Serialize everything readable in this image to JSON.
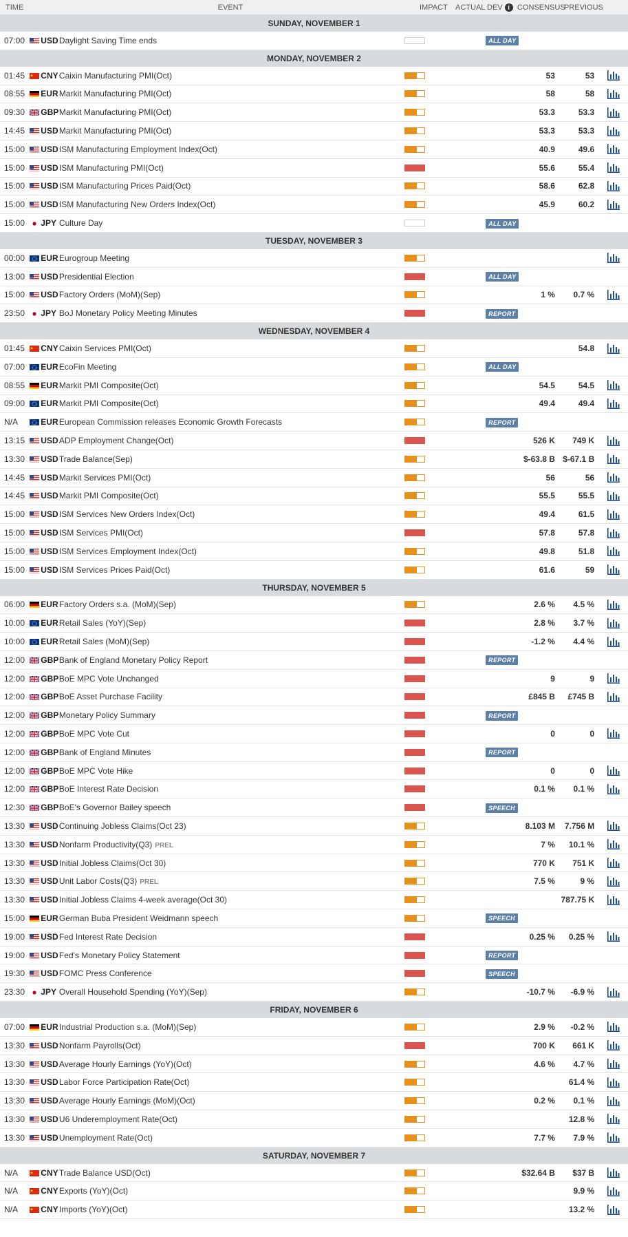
{
  "header": {
    "time": "TIME",
    "event": "EVENT",
    "impact": "IMPACT",
    "actual": "ACTUAL",
    "dev": "DEV",
    "consensus": "CONSENSUS",
    "previous": "PREVIOUS"
  },
  "colors": {
    "high": "#d9534f",
    "medium": "#e8901c",
    "badge": "#5c7fa6"
  },
  "days": [
    {
      "title": "SUNDAY, NOVEMBER 1",
      "events": [
        {
          "time": "07:00",
          "flag": "us",
          "cur": "USD",
          "name": "Daylight Saving Time ends",
          "impact": "none",
          "badge": "ALL DAY",
          "cons": "",
          "prev": "",
          "chart": false
        }
      ]
    },
    {
      "title": "MONDAY, NOVEMBER 2",
      "events": [
        {
          "time": "01:45",
          "flag": "cn",
          "cur": "CNY",
          "name": "Caixin Manufacturing PMI(Oct)",
          "impact": "medium",
          "cons": "53",
          "prev": "53",
          "chart": true
        },
        {
          "time": "08:55",
          "flag": "de",
          "cur": "EUR",
          "name": "Markit Manufacturing PMI(Oct)",
          "impact": "medium",
          "cons": "58",
          "prev": "58",
          "chart": true
        },
        {
          "time": "09:30",
          "flag": "gb",
          "cur": "GBP",
          "name": "Markit Manufacturing PMI(Oct)",
          "impact": "medium",
          "cons": "53.3",
          "prev": "53.3",
          "chart": true
        },
        {
          "time": "14:45",
          "flag": "us",
          "cur": "USD",
          "name": "Markit Manufacturing PMI(Oct)",
          "impact": "medium",
          "cons": "53.3",
          "prev": "53.3",
          "chart": true
        },
        {
          "time": "15:00",
          "flag": "us",
          "cur": "USD",
          "name": "ISM Manufacturing Employment Index(Oct)",
          "impact": "medium",
          "cons": "40.9",
          "prev": "49.6",
          "chart": true
        },
        {
          "time": "15:00",
          "flag": "us",
          "cur": "USD",
          "name": "ISM Manufacturing PMI(Oct)",
          "impact": "high",
          "cons": "55.6",
          "prev": "55.4",
          "chart": true
        },
        {
          "time": "15:00",
          "flag": "us",
          "cur": "USD",
          "name": "ISM Manufacturing Prices Paid(Oct)",
          "impact": "medium",
          "cons": "58.6",
          "prev": "62.8",
          "chart": true
        },
        {
          "time": "15:00",
          "flag": "us",
          "cur": "USD",
          "name": "ISM Manufacturing New Orders Index(Oct)",
          "impact": "medium",
          "cons": "45.9",
          "prev": "60.2",
          "chart": true
        },
        {
          "time": "15:00",
          "flag": "jp",
          "cur": "JPY",
          "name": "Culture Day",
          "impact": "none",
          "badge": "ALL DAY",
          "cons": "",
          "prev": "",
          "chart": false
        }
      ]
    },
    {
      "title": "TUESDAY, NOVEMBER 3",
      "events": [
        {
          "time": "00:00",
          "flag": "eu",
          "cur": "EUR",
          "name": "Eurogroup Meeting",
          "impact": "medium",
          "cons": "",
          "prev": "",
          "chart": true
        },
        {
          "time": "13:00",
          "flag": "us",
          "cur": "USD",
          "name": "Presidential Election",
          "impact": "high",
          "badge": "ALL DAY",
          "cons": "",
          "prev": "",
          "chart": false
        },
        {
          "time": "15:00",
          "flag": "us",
          "cur": "USD",
          "name": "Factory Orders (MoM)(Sep)",
          "impact": "medium",
          "cons": "1 %",
          "prev": "0.7 %",
          "chart": true
        },
        {
          "time": "23:50",
          "flag": "jp",
          "cur": "JPY",
          "name": "BoJ Monetary Policy Meeting Minutes",
          "impact": "high",
          "badge": "REPORT",
          "cons": "",
          "prev": "",
          "chart": false
        }
      ]
    },
    {
      "title": "WEDNESDAY, NOVEMBER 4",
      "events": [
        {
          "time": "01:45",
          "flag": "cn",
          "cur": "CNY",
          "name": "Caixin Services PMI(Oct)",
          "impact": "medium",
          "cons": "",
          "prev": "54.8",
          "chart": true
        },
        {
          "time": "07:00",
          "flag": "eu",
          "cur": "EUR",
          "name": "EcoFin Meeting",
          "impact": "medium",
          "badge": "ALL DAY",
          "cons": "",
          "prev": "",
          "chart": false
        },
        {
          "time": "08:55",
          "flag": "de",
          "cur": "EUR",
          "name": "Markit PMI Composite(Oct)",
          "impact": "medium",
          "cons": "54.5",
          "prev": "54.5",
          "chart": true
        },
        {
          "time": "09:00",
          "flag": "eu",
          "cur": "EUR",
          "name": "Markit PMI Composite(Oct)",
          "impact": "medium",
          "cons": "49.4",
          "prev": "49.4",
          "chart": true
        },
        {
          "time": "N/A",
          "flag": "eu",
          "cur": "EUR",
          "name": "European Commission releases Economic Growth Forecasts",
          "impact": "medium",
          "badge": "REPORT",
          "cons": "",
          "prev": "",
          "chart": false
        },
        {
          "time": "13:15",
          "flag": "us",
          "cur": "USD",
          "name": "ADP Employment Change(Oct)",
          "impact": "high",
          "cons": "526 K",
          "prev": "749 K",
          "chart": true
        },
        {
          "time": "13:30",
          "flag": "us",
          "cur": "USD",
          "name": "Trade Balance(Sep)",
          "impact": "medium",
          "cons": "$-63.8 B",
          "prev": "$-67.1 B",
          "chart": true
        },
        {
          "time": "14:45",
          "flag": "us",
          "cur": "USD",
          "name": "Markit Services PMI(Oct)",
          "impact": "medium",
          "cons": "56",
          "prev": "56",
          "chart": true
        },
        {
          "time": "14:45",
          "flag": "us",
          "cur": "USD",
          "name": "Markit PMI Composite(Oct)",
          "impact": "medium",
          "cons": "55.5",
          "prev": "55.5",
          "chart": true
        },
        {
          "time": "15:00",
          "flag": "us",
          "cur": "USD",
          "name": "ISM Services New Orders Index(Oct)",
          "impact": "medium",
          "cons": "49.4",
          "prev": "61.5",
          "chart": true
        },
        {
          "time": "15:00",
          "flag": "us",
          "cur": "USD",
          "name": "ISM Services PMI(Oct)",
          "impact": "high",
          "cons": "57.8",
          "prev": "57.8",
          "chart": true
        },
        {
          "time": "15:00",
          "flag": "us",
          "cur": "USD",
          "name": "ISM Services Employment Index(Oct)",
          "impact": "medium",
          "cons": "49.8",
          "prev": "51.8",
          "chart": true
        },
        {
          "time": "15:00",
          "flag": "us",
          "cur": "USD",
          "name": "ISM Services Prices Paid(Oct)",
          "impact": "medium",
          "cons": "61.6",
          "prev": "59",
          "chart": true
        }
      ]
    },
    {
      "title": "THURSDAY, NOVEMBER 5",
      "events": [
        {
          "time": "06:00",
          "flag": "de",
          "cur": "EUR",
          "name": "Factory Orders s.a. (MoM)(Sep)",
          "impact": "medium",
          "cons": "2.6 %",
          "prev": "4.5 %",
          "chart": true
        },
        {
          "time": "10:00",
          "flag": "eu",
          "cur": "EUR",
          "name": "Retail Sales (YoY)(Sep)",
          "impact": "high",
          "cons": "2.8 %",
          "prev": "3.7 %",
          "chart": true
        },
        {
          "time": "10:00",
          "flag": "eu",
          "cur": "EUR",
          "name": "Retail Sales (MoM)(Sep)",
          "impact": "high",
          "cons": "-1.2 %",
          "prev": "4.4 %",
          "chart": true
        },
        {
          "time": "12:00",
          "flag": "gb",
          "cur": "GBP",
          "name": "Bank of England Monetary Policy Report",
          "impact": "high",
          "badge": "REPORT",
          "cons": "",
          "prev": "",
          "chart": false
        },
        {
          "time": "12:00",
          "flag": "gb",
          "cur": "GBP",
          "name": "BoE MPC Vote Unchanged",
          "impact": "high",
          "cons": "9",
          "prev": "9",
          "chart": true
        },
        {
          "time": "12:00",
          "flag": "gb",
          "cur": "GBP",
          "name": "BoE Asset Purchase Facility",
          "impact": "high",
          "cons": "£845 B",
          "prev": "£745 B",
          "chart": true
        },
        {
          "time": "12:00",
          "flag": "gb",
          "cur": "GBP",
          "name": "Monetary Policy Summary",
          "impact": "high",
          "badge": "REPORT",
          "cons": "",
          "prev": "",
          "chart": false
        },
        {
          "time": "12:00",
          "flag": "gb",
          "cur": "GBP",
          "name": "BoE MPC Vote Cut",
          "impact": "high",
          "cons": "0",
          "prev": "0",
          "chart": true
        },
        {
          "time": "12:00",
          "flag": "gb",
          "cur": "GBP",
          "name": "Bank of England Minutes",
          "impact": "high",
          "badge": "REPORT",
          "cons": "",
          "prev": "",
          "chart": false
        },
        {
          "time": "12:00",
          "flag": "gb",
          "cur": "GBP",
          "name": "BoE MPC Vote Hike",
          "impact": "high",
          "cons": "0",
          "prev": "0",
          "chart": true
        },
        {
          "time": "12:00",
          "flag": "gb",
          "cur": "GBP",
          "name": "BoE Interest Rate Decision",
          "impact": "high",
          "cons": "0.1 %",
          "prev": "0.1 %",
          "chart": true
        },
        {
          "time": "12:30",
          "flag": "gb",
          "cur": "GBP",
          "name": "BoE's Governor Bailey speech",
          "impact": "high",
          "badge": "SPEECH",
          "cons": "",
          "prev": "",
          "chart": false
        },
        {
          "time": "13:30",
          "flag": "us",
          "cur": "USD",
          "name": "Continuing Jobless Claims(Oct 23)",
          "impact": "medium",
          "cons": "8.103 M",
          "prev": "7.756 M",
          "chart": true
        },
        {
          "time": "13:30",
          "flag": "us",
          "cur": "USD",
          "name": "Nonfarm Productivity(Q3)",
          "tag": "PREL",
          "impact": "medium",
          "cons": "7 %",
          "prev": "10.1 %",
          "chart": true
        },
        {
          "time": "13:30",
          "flag": "us",
          "cur": "USD",
          "name": "Initial Jobless Claims(Oct 30)",
          "impact": "medium",
          "cons": "770 K",
          "prev": "751 K",
          "chart": true
        },
        {
          "time": "13:30",
          "flag": "us",
          "cur": "USD",
          "name": "Unit Labor Costs(Q3)",
          "tag": "PREL",
          "impact": "medium",
          "cons": "7.5 %",
          "prev": "9 %",
          "chart": true
        },
        {
          "time": "13:30",
          "flag": "us",
          "cur": "USD",
          "name": "Initial Jobless Claims 4-week average(Oct 30)",
          "impact": "medium",
          "cons": "",
          "prev": "787.75 K",
          "chart": true
        },
        {
          "time": "15:00",
          "flag": "de",
          "cur": "EUR",
          "name": "German Buba President Weidmann speech",
          "impact": "medium",
          "badge": "SPEECH",
          "cons": "",
          "prev": "",
          "chart": false
        },
        {
          "time": "19:00",
          "flag": "us",
          "cur": "USD",
          "name": "Fed Interest Rate Decision",
          "impact": "high",
          "cons": "0.25 %",
          "prev": "0.25 %",
          "chart": true
        },
        {
          "time": "19:00",
          "flag": "us",
          "cur": "USD",
          "name": "Fed's Monetary Policy Statement",
          "impact": "high",
          "badge": "REPORT",
          "cons": "",
          "prev": "",
          "chart": false
        },
        {
          "time": "19:30",
          "flag": "us",
          "cur": "USD",
          "name": "FOMC Press Conference",
          "impact": "high",
          "badge": "SPEECH",
          "cons": "",
          "prev": "",
          "chart": false
        },
        {
          "time": "23:30",
          "flag": "jp",
          "cur": "JPY",
          "name": "Overall Household Spending (YoY)(Sep)",
          "impact": "medium",
          "cons": "-10.7 %",
          "prev": "-6.9 %",
          "chart": true
        }
      ]
    },
    {
      "title": "FRIDAY, NOVEMBER 6",
      "events": [
        {
          "time": "07:00",
          "flag": "de",
          "cur": "EUR",
          "name": "Industrial Production s.a. (MoM)(Sep)",
          "impact": "medium",
          "cons": "2.9 %",
          "prev": "-0.2 %",
          "chart": true
        },
        {
          "time": "13:30",
          "flag": "us",
          "cur": "USD",
          "name": "Nonfarm Payrolls(Oct)",
          "impact": "high",
          "cons": "700 K",
          "prev": "661 K",
          "chart": true
        },
        {
          "time": "13:30",
          "flag": "us",
          "cur": "USD",
          "name": "Average Hourly Earnings (YoY)(Oct)",
          "impact": "medium",
          "cons": "4.6 %",
          "prev": "4.7 %",
          "chart": true
        },
        {
          "time": "13:30",
          "flag": "us",
          "cur": "USD",
          "name": "Labor Force Participation Rate(Oct)",
          "impact": "medium",
          "cons": "",
          "prev": "61.4 %",
          "chart": true
        },
        {
          "time": "13:30",
          "flag": "us",
          "cur": "USD",
          "name": "Average Hourly Earnings (MoM)(Oct)",
          "impact": "medium",
          "cons": "0.2 %",
          "prev": "0.1 %",
          "chart": true
        },
        {
          "time": "13:30",
          "flag": "us",
          "cur": "USD",
          "name": "U6 Underemployment Rate(Oct)",
          "impact": "medium",
          "cons": "",
          "prev": "12.8 %",
          "chart": true
        },
        {
          "time": "13:30",
          "flag": "us",
          "cur": "USD",
          "name": "Unemployment Rate(Oct)",
          "impact": "medium",
          "cons": "7.7 %",
          "prev": "7.9 %",
          "chart": true
        }
      ]
    },
    {
      "title": "SATURDAY, NOVEMBER 7",
      "events": [
        {
          "time": "N/A",
          "flag": "cn",
          "cur": "CNY",
          "name": "Trade Balance USD(Oct)",
          "impact": "medium",
          "cons": "$32.64 B",
          "prev": "$37 B",
          "chart": true
        },
        {
          "time": "N/A",
          "flag": "cn",
          "cur": "CNY",
          "name": "Exports (YoY)(Oct)",
          "impact": "medium",
          "cons": "",
          "prev": "9.9 %",
          "chart": true
        },
        {
          "time": "N/A",
          "flag": "cn",
          "cur": "CNY",
          "name": "Imports (YoY)(Oct)",
          "impact": "medium",
          "cons": "",
          "prev": "13.2 %",
          "chart": true
        }
      ]
    }
  ]
}
